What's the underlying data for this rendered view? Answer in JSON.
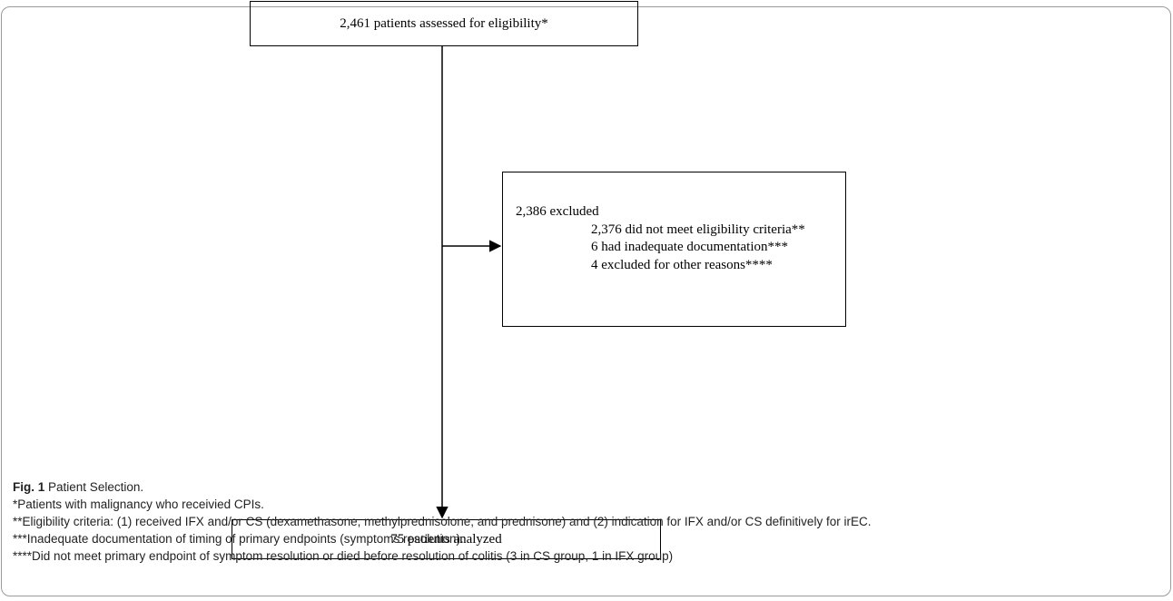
{
  "diagram": {
    "nodes": {
      "assessed": "2,461 patients assessed for eligibility*",
      "excluded": {
        "title": "2,386 excluded",
        "items": [
          "2,376 did not meet eligibility criteria**",
          "6 had inadequate documentation***",
          "4 excluded for other reasons****"
        ]
      },
      "analyzed": "75 patients analyzed"
    },
    "edges": [
      {
        "from": "assessed",
        "to": "analyzed"
      },
      {
        "from": "assessed",
        "to": "excluded"
      }
    ]
  },
  "caption": {
    "label": "Fig. 1",
    "title": "Patient Selection.",
    "notes": [
      "*Patients with malignancy who receivied CPIs.",
      "**Eligibility criteria: (1) received IFX and/or CS (dexamethasone, methylprednisolone, and prednisone) and (2) indication for IFX and/or CS definitively for irEC.",
      "***Inadequate documentation of timing of primary endpoints (symptoms resolution).",
      "****Did not meet primary endpoint of symptom resolution or died before resolution of colitis (3 in CS group, 1 in IFX group)"
    ]
  }
}
